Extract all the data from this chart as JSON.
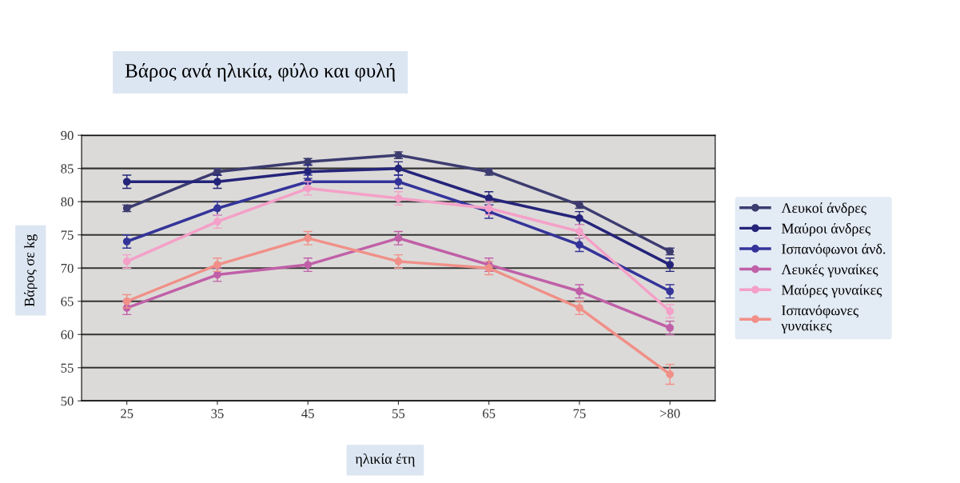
{
  "chart_data": {
    "type": "line",
    "title": "Βάρος ανά ηλικία, φύλο και φυλή",
    "xlabel": "ηλικία έτη",
    "ylabel": "Βάρος σε kg",
    "categories": [
      "25",
      "35",
      "45",
      "55",
      "65",
      "75",
      ">80"
    ],
    "ylim": [
      50,
      90
    ],
    "yticks": [
      50,
      55,
      60,
      65,
      70,
      75,
      80,
      85,
      90
    ],
    "grid": "y",
    "legend": "right",
    "marker": "circle",
    "series": [
      {
        "name": "Λευκοί άνδρες",
        "color": "#3c3c70",
        "values": [
          79,
          84.5,
          86,
          87,
          84.5,
          79.5,
          72.5
        ],
        "errors": [
          0.5,
          0.5,
          0.5,
          0.5,
          0.5,
          0.5,
          0.5
        ]
      },
      {
        "name": "Μαύροι άνδρες",
        "color": "#24247a",
        "values": [
          83,
          83,
          84.5,
          85,
          80.5,
          77.5,
          70.5
        ],
        "errors": [
          1,
          1,
          1,
          1,
          1,
          1,
          1
        ]
      },
      {
        "name": "Ισπανόφωνοι άνδ.",
        "color": "#34349a",
        "values": [
          74,
          79,
          83,
          83,
          78.5,
          73.5,
          66.5
        ],
        "errors": [
          1,
          1,
          1,
          1,
          1,
          1,
          1
        ]
      },
      {
        "name": "Λευκές γυναίκες",
        "color": "#c060a8",
        "values": [
          64,
          69,
          70.5,
          74.5,
          70.5,
          66.5,
          61
        ],
        "errors": [
          1,
          1,
          1,
          1,
          1,
          1,
          1
        ]
      },
      {
        "name": "Μαύρες γυναίκες",
        "color": "#f4a0c8",
        "values": [
          71,
          77,
          82,
          80.5,
          79,
          75.5,
          63.5
        ],
        "errors": [
          1,
          1,
          1,
          1,
          1,
          1,
          1
        ]
      },
      {
        "name": "Ισπανόφωνες\nγυναίκες",
        "color": "#f09088",
        "values": [
          65,
          70.5,
          74.5,
          71,
          70,
          64,
          54
        ],
        "errors": [
          1,
          1,
          1,
          1,
          1,
          1,
          1.5
        ]
      }
    ]
  }
}
